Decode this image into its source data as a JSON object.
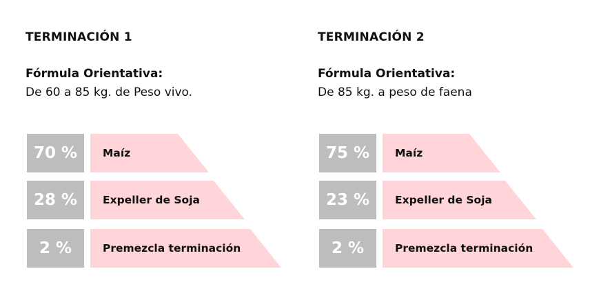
{
  "panels": [
    {
      "title": "TERMINACIÓN 1",
      "formula_label": "Fórmula Orientativa:",
      "formula_desc": "De 60 a 85 kg. de Peso vivo.",
      "rows": [
        {
          "percent_label": "70 %",
          "ingredient": "Maíz"
        },
        {
          "percent_label": "28 %",
          "ingredient": "Expeller de Soja"
        },
        {
          "percent_label": "2 %",
          "ingredient": "Premezcla terminación"
        }
      ]
    },
    {
      "title": "TERMINACIÓN 2",
      "formula_label": "Fórmula Orientativa:",
      "formula_desc": "De 85 kg. a peso de faena",
      "rows": [
        {
          "percent_label": "75 %",
          "ingredient": "Maíz"
        },
        {
          "percent_label": "23 %",
          "ingredient": "Expeller de Soja"
        },
        {
          "percent_label": "2 %",
          "ingredient": "Premezcla terminación"
        }
      ]
    }
  ],
  "colors": {
    "percent_box": "#bdbdbd",
    "ingredient_fill": "#ffd5d9",
    "text": "#111111"
  }
}
